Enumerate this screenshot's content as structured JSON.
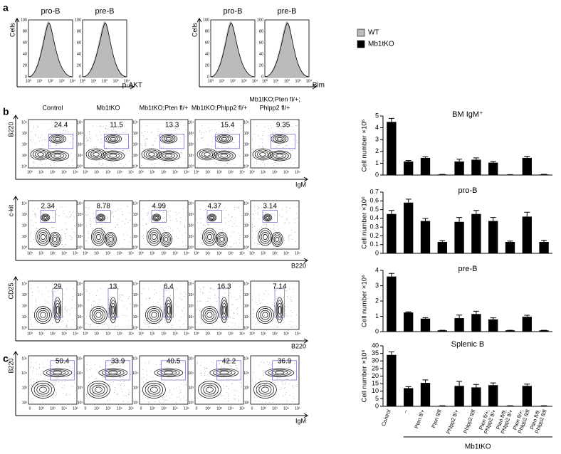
{
  "panel_labels": [
    "a",
    "b",
    "c"
  ],
  "panel_a": {
    "histograms": [
      "pro-B",
      "pre-B",
      "pro-B",
      "pre-B"
    ],
    "y_label": "Cells",
    "x_labels": [
      "p-AKT",
      "Bim"
    ],
    "y_tick_labels": [
      0,
      20,
      40,
      60,
      80,
      100
    ],
    "x_tick_labels": [
      "10⁰",
      "10¹",
      "10²",
      "10³",
      "10⁴"
    ],
    "legend": [
      "WT",
      "Mb1tKO"
    ]
  },
  "panel_b": {
    "columns": [
      [
        "Control"
      ],
      [
        "Mb1tKO"
      ],
      [
        "Mb1tKO;Pten fl/+"
      ],
      [
        "Mb1tKO;Phlpp2 fl/+"
      ],
      [
        "Mb1tKO;Pten fl/+;",
        "Phlpp2 fl/+"
      ]
    ],
    "tick_labels": [
      "10⁰",
      "10¹",
      "10²",
      "10³",
      "10⁴"
    ],
    "rows": [
      {
        "y_label": "B220",
        "x_label": "IgM",
        "values": [
          24.4,
          11.5,
          13.3,
          15.4,
          9.35
        ]
      },
      {
        "y_label": "c-kit",
        "x_label": "B220",
        "values": [
          2.34,
          8.78,
          4.99,
          4.37,
          3.14
        ]
      },
      {
        "y_label": "CD25",
        "x_label": "B220",
        "values": [
          29,
          13,
          6.4,
          16.3,
          7.14
        ]
      }
    ]
  },
  "panel_c": {
    "y_label": "B220",
    "x_label": "IgM",
    "values": [
      50.4,
      33.9,
      40.5,
      42.2,
      36.9
    ],
    "x_tick_labels": [
      "0",
      "10²",
      "10³",
      "10⁴",
      "10⁵"
    ],
    "y_tick_labels": [
      "10²",
      "10³",
      "10⁴",
      "10⁵"
    ]
  },
  "chart_data": [
    {
      "type": "bar",
      "title": "BM IgM⁺",
      "y_label": "Cell number ×10⁶",
      "color": "#000000",
      "values": [
        4.5,
        1.15,
        1.45,
        0.05,
        1.15,
        1.3,
        1.05,
        0.03,
        1.45,
        0.05
      ],
      "errors": [
        0.3,
        0.08,
        0.1,
        0.01,
        0.2,
        0.15,
        0.1,
        0.01,
        0.15,
        0.02
      ],
      "ylim": [
        0,
        5
      ],
      "yticks": [
        0,
        1,
        2,
        3,
        4,
        5
      ]
    },
    {
      "type": "bar",
      "title": "pro-B",
      "y_label": "Cell number ×10⁶",
      "color": "#000000",
      "values": [
        0.45,
        0.58,
        0.37,
        0.13,
        0.36,
        0.45,
        0.37,
        0.13,
        0.42,
        0.13
      ],
      "errors": [
        0.04,
        0.04,
        0.03,
        0.015,
        0.05,
        0.04,
        0.04,
        0.01,
        0.05,
        0.02
      ],
      "ylim": [
        0,
        0.7
      ],
      "yticks": [
        0,
        0.1,
        0.2,
        0.3,
        0.4,
        0.5,
        0.6,
        0.7
      ]
    },
    {
      "type": "bar",
      "title": "pre-B",
      "y_label": "Cell number ×10⁶",
      "color": "#000000",
      "values": [
        3.6,
        1.25,
        0.85,
        0.08,
        0.88,
        1.15,
        0.8,
        0.08,
        0.97,
        0.08
      ],
      "errors": [
        0.2,
        0.04,
        0.06,
        0.01,
        0.2,
        0.18,
        0.1,
        0.01,
        0.1,
        0.01
      ],
      "ylim": [
        0,
        4
      ],
      "yticks": [
        0,
        1,
        2,
        3,
        4
      ]
    },
    {
      "type": "bar",
      "title": "Splenic B",
      "y_label": "Cell number ×10⁶",
      "color": "#000000",
      "categories": [
        [
          "Control"
        ],
        [
          "–"
        ],
        [
          "Pten fl/+"
        ],
        [
          "Pten fl/fl"
        ],
        [
          "Phlpp2 fl/+"
        ],
        [
          "Phlpp2 fl/fl"
        ],
        [
          "Pten fl/+;",
          "Phlpp2 fl/+"
        ],
        [
          "Pten fl/fl;",
          "Phlpp2 fl/+"
        ],
        [
          "Pten fl/+;",
          "Phlpp2 fl/fl"
        ],
        [
          "Pten fl/fl;",
          "Phlpp2 fl/fl"
        ]
      ],
      "group_label": "Mb1tKO",
      "values": [
        34,
        12,
        15.5,
        0.3,
        13.5,
        12.5,
        14,
        0.3,
        13.5,
        0.3
      ],
      "errors": [
        2,
        1,
        2,
        0.1,
        3,
        2,
        1.5,
        0.1,
        1.2,
        0.1
      ],
      "ylim": [
        0,
        40
      ],
      "yticks": [
        0,
        5,
        10,
        15,
        20,
        25,
        30,
        35,
        40
      ]
    }
  ]
}
